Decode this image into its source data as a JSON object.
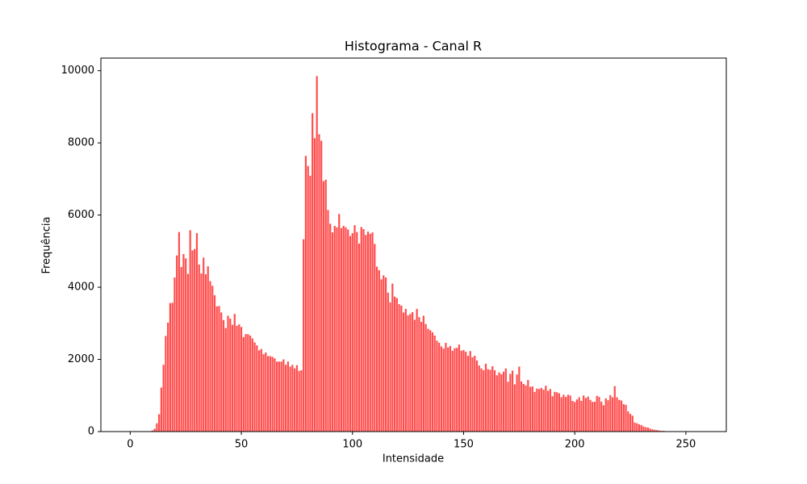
{
  "chart_data": {
    "type": "bar",
    "title": "Histograma - Canal R",
    "x_label": "Intensidade",
    "y_label": "Frequência",
    "color": "#ff4d4d",
    "bar_width": 0.8,
    "x": [
      0,
      1,
      2,
      3,
      4,
      5,
      6,
      7,
      8,
      9,
      10,
      11,
      12,
      13,
      14,
      15,
      16,
      17,
      18,
      19,
      20,
      21,
      22,
      23,
      24,
      25,
      26,
      27,
      28,
      29,
      30,
      31,
      32,
      33,
      34,
      35,
      36,
      37,
      38,
      39,
      40,
      41,
      42,
      43,
      44,
      45,
      46,
      47,
      48,
      49,
      50,
      51,
      52,
      53,
      54,
      55,
      56,
      57,
      58,
      59,
      60,
      61,
      62,
      63,
      64,
      65,
      66,
      67,
      68,
      69,
      70,
      71,
      72,
      73,
      74,
      75,
      76,
      77,
      78,
      79,
      80,
      81,
      82,
      83,
      84,
      85,
      86,
      87,
      88,
      89,
      90,
      91,
      92,
      93,
      94,
      95,
      96,
      97,
      98,
      99,
      100,
      101,
      102,
      103,
      104,
      105,
      106,
      107,
      108,
      109,
      110,
      111,
      112,
      113,
      114,
      115,
      116,
      117,
      118,
      119,
      120,
      121,
      122,
      123,
      124,
      125,
      126,
      127,
      128,
      129,
      130,
      131,
      132,
      133,
      134,
      135,
      136,
      137,
      138,
      139,
      140,
      141,
      142,
      143,
      144,
      145,
      146,
      147,
      148,
      149,
      150,
      151,
      152,
      153,
      154,
      155,
      156,
      157,
      158,
      159,
      160,
      161,
      162,
      163,
      164,
      165,
      166,
      167,
      168,
      169,
      170,
      171,
      172,
      173,
      174,
      175,
      176,
      177,
      178,
      179,
      180,
      181,
      182,
      183,
      184,
      185,
      186,
      187,
      188,
      189,
      190,
      191,
      192,
      193,
      194,
      195,
      196,
      197,
      198,
      199,
      200,
      201,
      202,
      203,
      204,
      205,
      206,
      207,
      208,
      209,
      210,
      211,
      212,
      213,
      214,
      215,
      216,
      217,
      218,
      219,
      220,
      221,
      222,
      223,
      224,
      225,
      226,
      227,
      228,
      229,
      230,
      231,
      232,
      233,
      234,
      235,
      236,
      237,
      238,
      239,
      240,
      241,
      242,
      243,
      244,
      245,
      246,
      247,
      248,
      249,
      250,
      251,
      252,
      253,
      254,
      255
    ],
    "values": [
      0,
      0,
      0,
      0,
      0,
      0,
      0,
      0,
      0,
      0,
      30,
      80,
      230,
      480,
      1220,
      1850,
      2650,
      3020,
      3560,
      3570,
      4270,
      4880,
      5530,
      4560,
      4920,
      4800,
      4370,
      5580,
      5020,
      5060,
      5500,
      4630,
      4380,
      4820,
      4360,
      4580,
      4170,
      4040,
      3780,
      3470,
      3480,
      3300,
      3090,
      2870,
      3210,
      3130,
      2960,
      3260,
      2930,
      2970,
      2900,
      2620,
      2700,
      2700,
      2660,
      2580,
      2470,
      2390,
      2250,
      2290,
      2140,
      2190,
      2090,
      2090,
      2070,
      2030,
      1940,
      1940,
      1940,
      2000,
      1850,
      1940,
      1800,
      1850,
      1750,
      1840,
      1680,
      1700,
      5330,
      7640,
      7360,
      7090,
      8820,
      8130,
      9850,
      8240,
      8060,
      6940,
      6980,
      6140,
      5760,
      5520,
      5700,
      5660,
      6030,
      5640,
      5700,
      5660,
      5600,
      5420,
      5500,
      5720,
      5530,
      5210,
      5670,
      5610,
      5450,
      5540,
      5480,
      5520,
      5200,
      4570,
      4470,
      4220,
      4330,
      4270,
      3850,
      3580,
      4100,
      3740,
      3700,
      3530,
      3490,
      3300,
      3400,
      3220,
      3260,
      3310,
      3100,
      3400,
      3170,
      3040,
      3210,
      2980,
      2850,
      2810,
      2750,
      2660,
      2520,
      2460,
      2360,
      2300,
      2460,
      2330,
      2370,
      2240,
      2310,
      2320,
      2410,
      2240,
      2260,
      2210,
      2100,
      2230,
      2060,
      2100,
      1970,
      1830,
      1750,
      1700,
      1880,
      1730,
      1710,
      1810,
      1700,
      1560,
      1640,
      1590,
      1660,
      1750,
      1380,
      1600,
      1690,
      1310,
      1580,
      1800,
      1390,
      1320,
      1280,
      1430,
      1240,
      1250,
      1100,
      1190,
      1180,
      1210,
      1160,
      1270,
      1130,
      1180,
      980,
      1100,
      1090,
      1060,
      950,
      1020,
      960,
      1020,
      1000,
      850,
      820,
      890,
      950,
      850,
      1000,
      930,
      970,
      880,
      820,
      830,
      990,
      960,
      830,
      730,
      920,
      870,
      1010,
      950,
      1260,
      950,
      880,
      860,
      760,
      740,
      560,
      490,
      440,
      250,
      230,
      200,
      180,
      140,
      120,
      110,
      80,
      60,
      50,
      40,
      30,
      20,
      20,
      10,
      0,
      0,
      0,
      0,
      0,
      0,
      0,
      0,
      0,
      0,
      0,
      0,
      0,
      0
    ],
    "xlim": [
      -13.19,
      268.19
    ],
    "xticks": [
      0,
      50,
      100,
      150,
      200,
      250
    ],
    "ylim": [
      0,
      10350
    ],
    "yticks": [
      0,
      2000,
      4000,
      6000,
      8000,
      10000
    ]
  }
}
